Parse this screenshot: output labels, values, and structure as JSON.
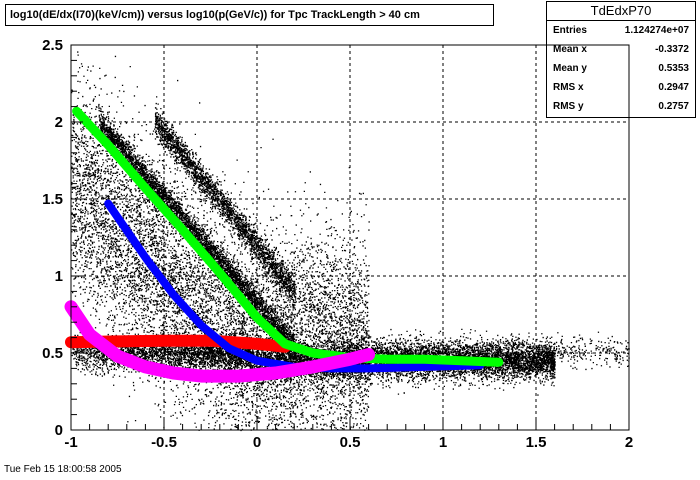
{
  "title": "log10(dE/dx(I70)(keV/cm)) versus log10(p(GeV/c)) for Tpc TrackLength > 40 cm",
  "stats": {
    "name": "TdEdxP70",
    "rows": [
      {
        "label": "Entries",
        "value": "1.124274e+07"
      },
      {
        "label": "Mean x",
        "value": "-0.3372"
      },
      {
        "label": "Mean y",
        "value": "0.5353"
      },
      {
        "label": "RMS x",
        "value": "0.2947"
      },
      {
        "label": "RMS y",
        "value": "0.2757"
      }
    ]
  },
  "timestamp": "Tue Feb 15 18:00:58 2005",
  "colors": {
    "scatter": "#000000",
    "red_band": "#ff0000",
    "green_band": "#00ff00",
    "blue_band": "#0000ff",
    "magenta_band": "#ff00ff",
    "grid": "#000000"
  },
  "chart_data": {
    "type": "scatter",
    "title": "log10(dE/dx(I70)(keV/cm)) versus log10(p(GeV/c)) for Tpc TrackLength > 40 cm",
    "xlabel": "",
    "ylabel": "",
    "xlim": [
      -1,
      2
    ],
    "ylim": [
      0,
      2.5
    ],
    "x_ticks": [
      "-1",
      "-0.5",
      "0",
      "0.5",
      "1",
      "1.5",
      "2"
    ],
    "y_ticks": [
      "0",
      "0.5",
      "1",
      "1.5",
      "2",
      "2.5"
    ],
    "grid": true,
    "legend": "none",
    "series": [
      {
        "color": "#ff0000",
        "x": [
          -1.0,
          -0.75,
          -0.5,
          -0.25,
          0.0,
          0.15
        ],
        "y": [
          0.57,
          0.575,
          0.58,
          0.58,
          0.56,
          0.54
        ]
      },
      {
        "color": "#00ff00",
        "x": [
          -0.97,
          -0.8,
          -0.6,
          -0.4,
          -0.2,
          0.0,
          0.15,
          0.3,
          0.5,
          0.7,
          0.9,
          1.1,
          1.3
        ],
        "y": [
          2.07,
          1.85,
          1.57,
          1.3,
          1.02,
          0.73,
          0.56,
          0.5,
          0.47,
          0.46,
          0.46,
          0.45,
          0.44
        ]
      },
      {
        "color": "#0000ff",
        "x": [
          -0.8,
          -0.6,
          -0.45,
          -0.3,
          -0.15,
          0.0,
          0.2,
          0.4,
          0.6,
          0.9,
          1.2
        ],
        "y": [
          1.47,
          1.12,
          0.88,
          0.68,
          0.53,
          0.45,
          0.41,
          0.4,
          0.4,
          0.41,
          0.42
        ]
      },
      {
        "color": "#ff00ff",
        "x": [
          -1.0,
          -0.9,
          -0.75,
          -0.6,
          -0.45,
          -0.3,
          -0.1,
          0.1,
          0.3,
          0.5,
          0.6
        ],
        "y": [
          0.8,
          0.62,
          0.48,
          0.41,
          0.37,
          0.35,
          0.35,
          0.37,
          0.41,
          0.46,
          0.49
        ]
      }
    ]
  }
}
